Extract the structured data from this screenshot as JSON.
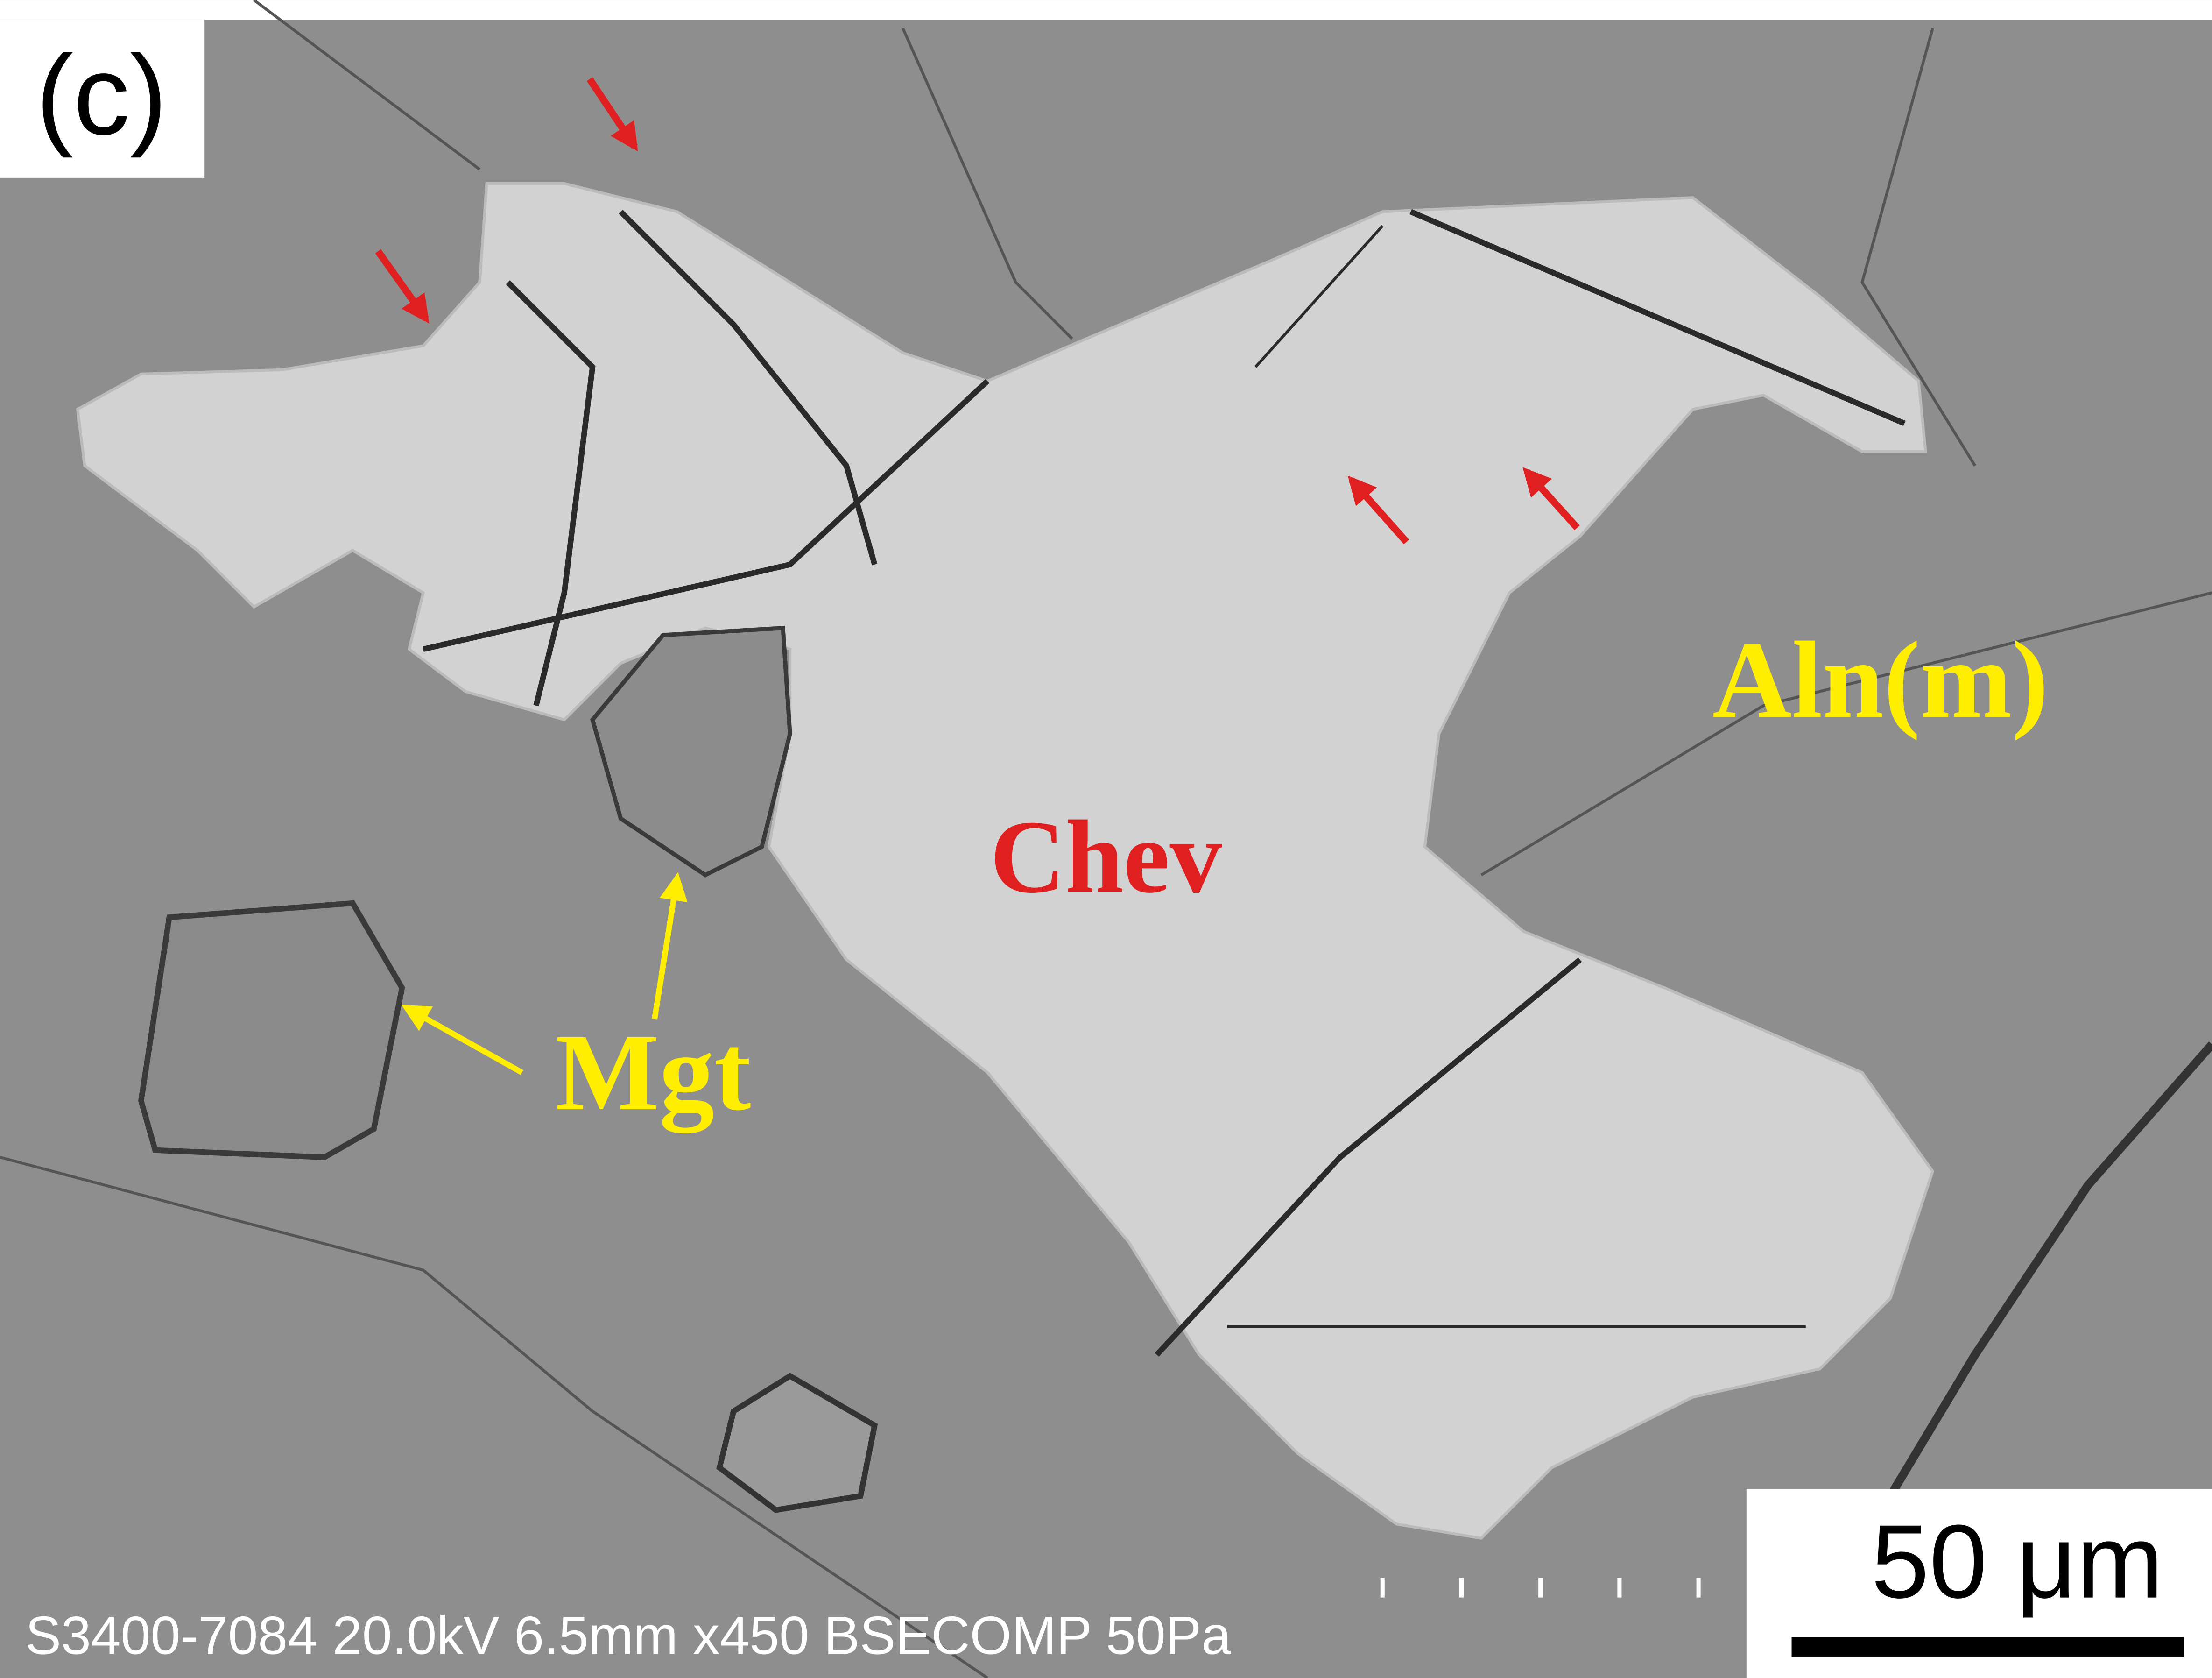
{
  "panel_label": "(c)",
  "labels": [
    "Aln(m)",
    "Chev",
    "Mgt"
  ],
  "scale_bar": "50 μm",
  "footer": "S3400-7084 20.0kV 6.5mm x450 BSECOMP 50Pa"
}
